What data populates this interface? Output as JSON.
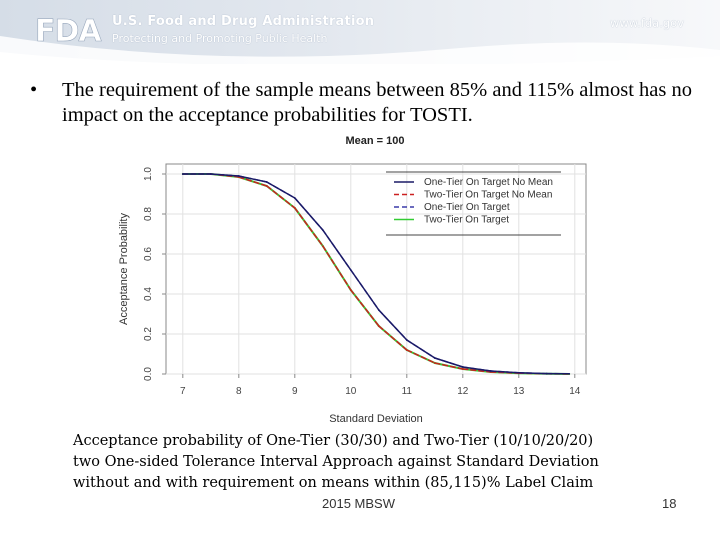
{
  "header": {
    "logo_text": "FDA",
    "agency_title": "U.S. Food and Drug Administration",
    "agency_subtitle": "Protecting and Promoting Public Health",
    "website": "www.fda.gov"
  },
  "slide": {
    "bullet_symbol": "•",
    "bullet_text": "The requirement of the sample means between 85% and 115% almost has no impact on the acceptance probabilities for TOSTI.",
    "caption_lines": [
      "Acceptance probability of One-Tier (30/30) and Two-Tier (10/10/20/20)",
      "two One-sided Tolerance Interval Approach against Standard Deviation",
      "without and with requirement on means within (85,115)% Label Claim"
    ],
    "footer": "2015 MBSW",
    "page_number": "18"
  },
  "chart_data": {
    "type": "line",
    "title": "Mean = 100",
    "xlabel": "Standard Deviation",
    "ylabel": "Acceptance Probability",
    "xlim": [
      6.7,
      14.2
    ],
    "ylim": [
      0.0,
      1.05
    ],
    "x_ticks": [
      "7",
      "8",
      "9",
      "10",
      "11",
      "12",
      "13",
      "14"
    ],
    "y_ticks": [
      "0.0",
      "0.2",
      "0.4",
      "0.6",
      "0.8",
      "1.0"
    ],
    "legend_position": "top-right",
    "series": [
      {
        "name": "One-Tier On Target No Mean",
        "color": "#1a1a66",
        "dash": "solid",
        "x": [
          7.0,
          7.5,
          8.0,
          8.5,
          9.0,
          9.5,
          10.0,
          10.5,
          11.0,
          11.5,
          12.0,
          12.5,
          13.0,
          13.5,
          13.9
        ],
        "y": [
          1.0,
          1.0,
          0.99,
          0.96,
          0.88,
          0.72,
          0.52,
          0.32,
          0.17,
          0.08,
          0.035,
          0.015,
          0.006,
          0.002,
          0.001
        ]
      },
      {
        "name": "Two-Tier On Target No Mean",
        "color": "#cc2020",
        "dash": "dashed",
        "x": [
          7.0,
          7.5,
          8.0,
          8.5,
          9.0,
          9.5,
          10.0,
          10.5,
          11.0,
          11.5,
          12.0,
          12.5,
          13.0,
          13.5,
          13.9
        ],
        "y": [
          1.0,
          1.0,
          0.985,
          0.94,
          0.83,
          0.64,
          0.42,
          0.24,
          0.12,
          0.055,
          0.025,
          0.01,
          0.004,
          0.001,
          0.0
        ]
      },
      {
        "name": "One-Tier On Target",
        "color": "#3a3aa8",
        "dash": "dashed",
        "x": [
          7.0,
          7.5,
          8.0,
          8.5,
          9.0,
          9.5,
          10.0,
          10.5,
          11.0,
          11.5,
          12.0,
          12.5,
          13.0,
          13.5,
          13.9
        ],
        "y": [
          1.0,
          1.0,
          0.99,
          0.96,
          0.88,
          0.72,
          0.52,
          0.32,
          0.17,
          0.08,
          0.035,
          0.015,
          0.006,
          0.002,
          0.001
        ]
      },
      {
        "name": "Two-Tier On Target",
        "color": "#33cc33",
        "dash": "solid",
        "x": [
          7.0,
          7.5,
          8.0,
          8.5,
          9.0,
          9.5,
          10.0,
          10.5,
          11.0,
          11.5,
          12.0,
          12.5,
          13.0,
          13.5,
          13.9
        ],
        "y": [
          1.0,
          1.0,
          0.985,
          0.94,
          0.83,
          0.64,
          0.42,
          0.24,
          0.12,
          0.055,
          0.025,
          0.01,
          0.004,
          0.001,
          0.0
        ]
      }
    ]
  },
  "colors": {
    "header_text": "#ffffff",
    "header_band_left": "#d5dde7",
    "header_band_right": "#f7f8fa"
  }
}
